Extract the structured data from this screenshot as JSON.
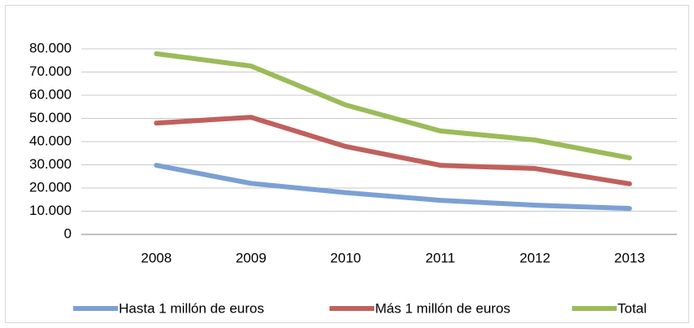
{
  "chart_data": {
    "type": "line",
    "categories": [
      "2008",
      "2009",
      "2010",
      "2011",
      "2012",
      "2013"
    ],
    "series": [
      {
        "name": "Hasta 1 millón de euros",
        "color": "#7ba0d4",
        "values": [
          29800,
          22000,
          18000,
          14700,
          12600,
          11200
        ]
      },
      {
        "name": "Más 1 millón de euros",
        "color": "#c0605d",
        "values": [
          48000,
          50500,
          37900,
          29800,
          28400,
          21800
        ]
      },
      {
        "name": "Total",
        "color": "#9bbb59",
        "values": [
          77900,
          72600,
          55800,
          44600,
          40700,
          33000
        ]
      }
    ],
    "ylim": [
      0,
      80000
    ],
    "yticks": [
      0,
      {
        "value": 10000,
        "label": "10.000"
      },
      {
        "value": 20000,
        "label": "20.000"
      },
      {
        "value": 30000,
        "label": "30.000"
      },
      {
        "value": 40000,
        "label": "40.000"
      },
      {
        "value": 50000,
        "label": "50.000"
      },
      {
        "value": 60000,
        "label": "60.000"
      },
      {
        "value": 70000,
        "label": "70.000"
      },
      {
        "value": 80000,
        "label": "80.000"
      }
    ],
    "grid": true,
    "legend": "bottom"
  }
}
